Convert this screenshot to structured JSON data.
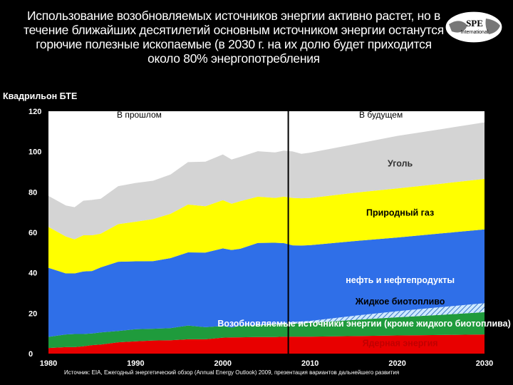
{
  "title": "Использование возобновляемых источников энергии активно растет, но в течение ближайших десятилетий основным источником энергии останутся горючие полезные ископаемые (в 2030 г. на их долю будет приходится около 80% энергопотребления",
  "logo": {
    "line1": "SPE",
    "line2": "International"
  },
  "source": "Источник: EIA, Ежегодный энергетический обзор (Annual Energy Outlook) 2009, презентация вариантов дальнейшего развития",
  "chart_data": {
    "type": "area",
    "stacked": true,
    "ylabel": "Квадрильон БТЕ",
    "ylim": [
      0,
      120
    ],
    "xlim": [
      1980,
      2030
    ],
    "x_ticks": [
      1980,
      1990,
      2000,
      2010,
      2020,
      2030
    ],
    "y_ticks": [
      0,
      20,
      40,
      60,
      80,
      100,
      120
    ],
    "divider_year": 2007.5,
    "region_labels": [
      "В прошлом",
      "В будущем"
    ],
    "grid": false,
    "x": [
      1980,
      1982,
      1983,
      1984,
      1985,
      1986,
      1988,
      1990,
      1992,
      1994,
      1996,
      1998,
      2000,
      2001,
      2002,
      2004,
      2006,
      2007,
      2008,
      2009,
      2010,
      2015,
      2020,
      2025,
      2030
    ],
    "series": [
      {
        "name": "Ядерная энергия",
        "color": "#e80000",
        "values": [
          2.8,
          3.2,
          3.2,
          3.6,
          4.2,
          4.5,
          5.6,
          6.1,
          6.5,
          6.6,
          7.1,
          7.1,
          7.9,
          8.0,
          8.1,
          8.2,
          8.2,
          8.4,
          8.4,
          8.4,
          8.4,
          8.7,
          9.0,
          9.2,
          9.5
        ]
      },
      {
        "name": "Возобновляемые источники энергии (кроме жидкого биотоплива)",
        "color": "#1f9b3c",
        "values": [
          5.5,
          6.3,
          6.5,
          6.1,
          5.8,
          6.0,
          5.6,
          6.0,
          5.8,
          6.0,
          6.8,
          6.0,
          5.8,
          5.0,
          5.7,
          5.9,
          6.2,
          6.2,
          6.4,
          6.6,
          6.8,
          8.0,
          9.0,
          10.0,
          11.0
        ]
      },
      {
        "name": "Жидкое биотопливо",
        "color": "#bfe4ff",
        "values": [
          0,
          0,
          0,
          0,
          0,
          0,
          0,
          0,
          0,
          0,
          0,
          0,
          0,
          0,
          0,
          0.3,
          0.5,
          0.7,
          0.8,
          0.9,
          1.0,
          2.0,
          3.0,
          3.8,
          4.5
        ]
      },
      {
        "name": "нефть и нефтепродукты",
        "color": "#2f6fe8",
        "values": [
          34.2,
          30.2,
          30.0,
          31.0,
          30.9,
          32.2,
          34.3,
          33.6,
          33.5,
          34.7,
          36.2,
          36.9,
          38.4,
          38.3,
          38.1,
          40.4,
          40.0,
          39.4,
          38.0,
          37.6,
          37.5,
          37.0,
          36.5,
          36.5,
          36.5
        ]
      },
      {
        "name": "Природный газ",
        "color": "#ffff00",
        "values": [
          20.2,
          18.3,
          16.9,
          17.9,
          17.7,
          16.7,
          18.6,
          19.6,
          20.8,
          21.9,
          23.7,
          23.0,
          23.9,
          22.9,
          23.6,
          22.9,
          22.2,
          23.0,
          23.5,
          23.4,
          23.3,
          23.9,
          24.3,
          24.6,
          25.0
        ]
      },
      {
        "name": "Уголь",
        "color": "#d4d4d4",
        "values": [
          15.4,
          15.3,
          15.9,
          17.1,
          17.5,
          17.3,
          18.8,
          19.2,
          19.0,
          19.5,
          21.0,
          22.0,
          22.6,
          21.9,
          21.9,
          22.5,
          22.5,
          22.8,
          23.0,
          22.0,
          22.5,
          24.0,
          26.0,
          27.0,
          28.0
        ]
      }
    ]
  }
}
